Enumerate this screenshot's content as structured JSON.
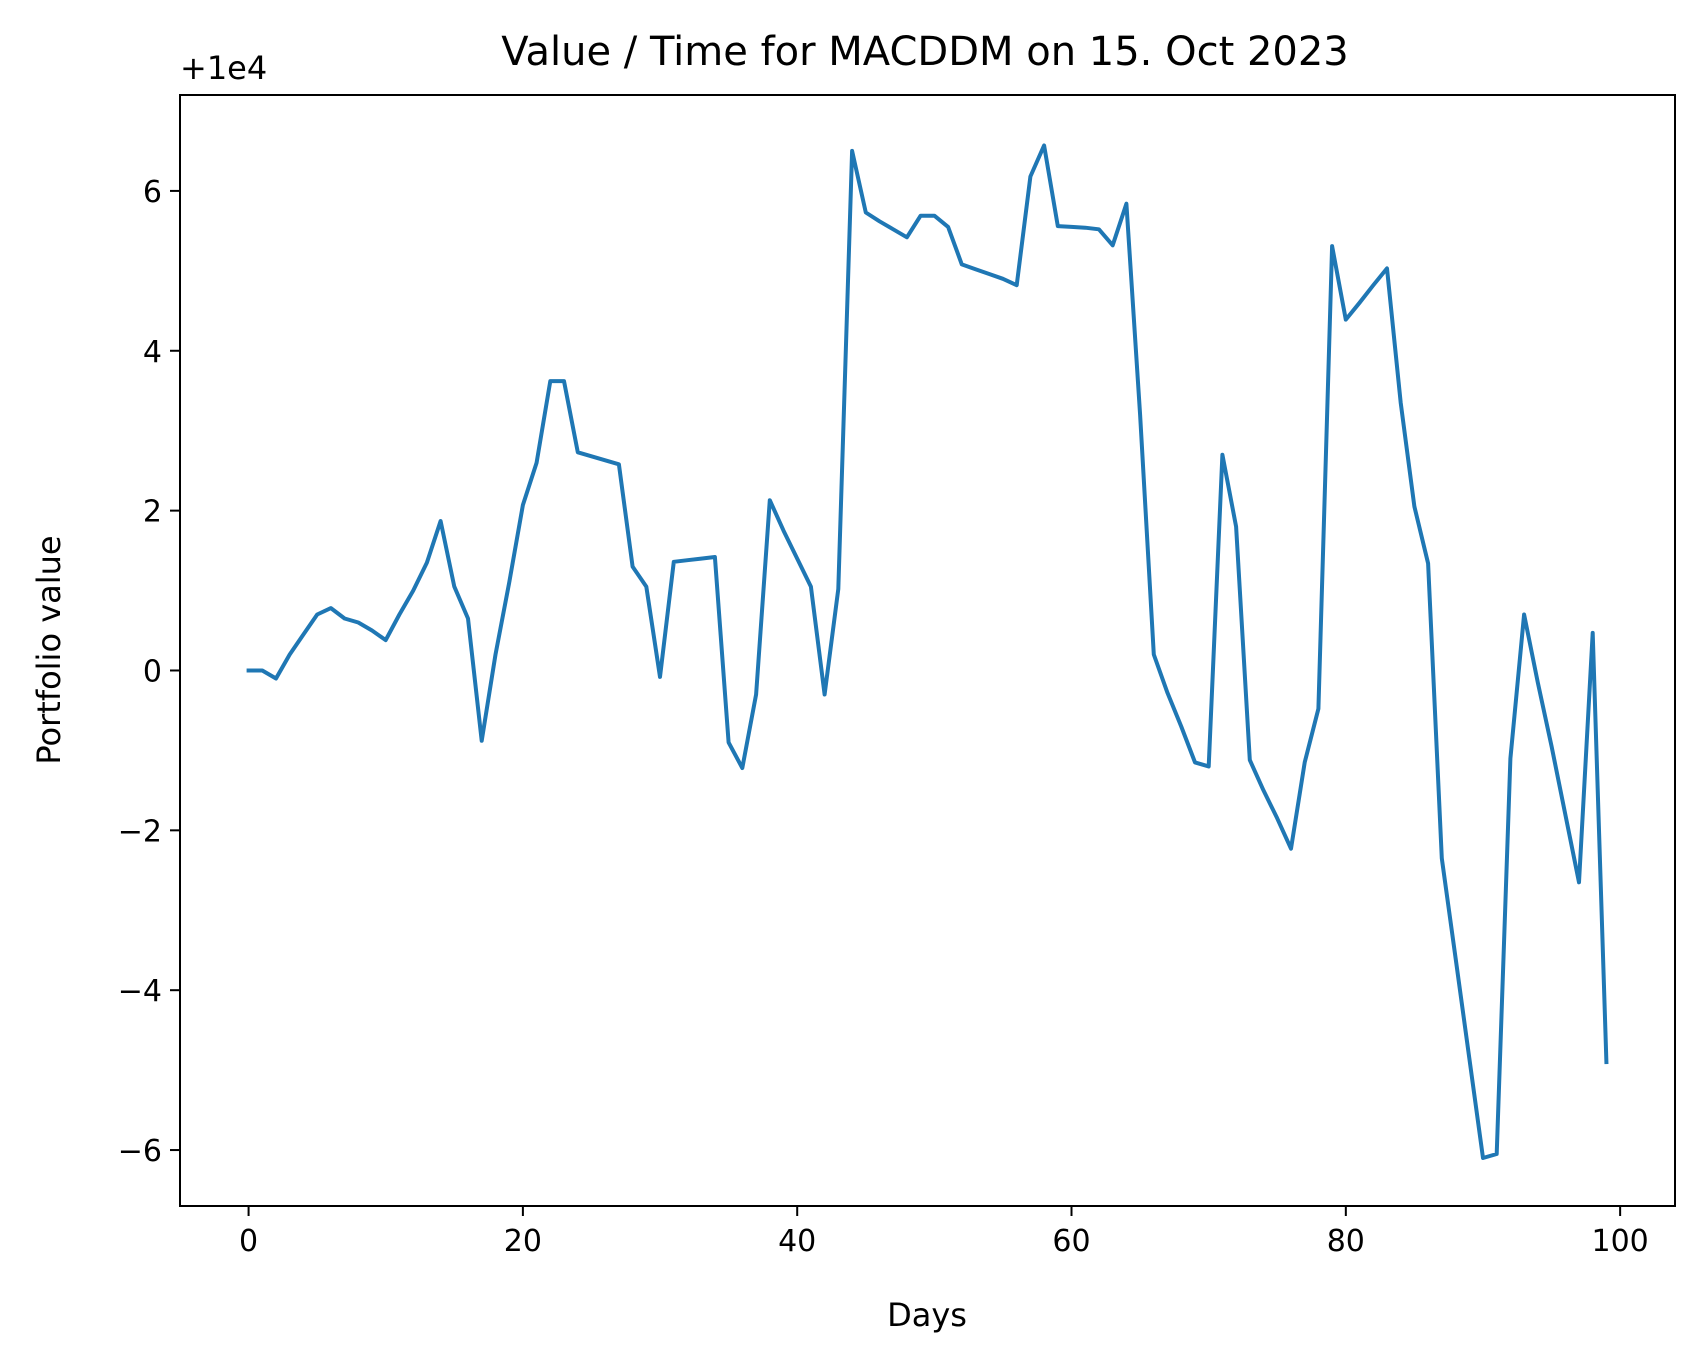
{
  "chart_data": {
    "type": "line",
    "title": "Value / Time for MACDDM on 15. Oct 2023",
    "xlabel": "Days",
    "ylabel": "Portfolio value",
    "y_offset_label": "+1e4",
    "y_offset": 10000,
    "xlim": [
      -5,
      104
    ],
    "ylim": [
      -6.7,
      7.2
    ],
    "x_ticks": [
      0,
      20,
      40,
      60,
      80,
      100
    ],
    "x_tick_labels": [
      "0",
      "20",
      "40",
      "60",
      "80",
      "100"
    ],
    "y_ticks": [
      -6,
      -4,
      -2,
      0,
      2,
      4,
      6
    ],
    "y_tick_labels": [
      "−6",
      "−4",
      "−2",
      "0",
      "2",
      "4",
      "6"
    ],
    "grid": false,
    "legend": "none",
    "series": [
      {
        "color": "#1f77b4",
        "x": [
          0,
          1,
          2,
          3,
          4,
          5,
          6,
          7,
          8,
          9,
          10,
          11,
          12,
          13,
          14,
          15,
          16,
          17,
          18,
          19,
          20,
          21,
          22,
          23,
          24,
          25,
          26,
          27,
          28,
          29,
          30,
          31,
          32,
          33,
          34,
          35,
          36,
          37,
          38,
          39,
          40,
          41,
          42,
          43,
          44,
          45,
          46,
          47,
          48,
          49,
          50,
          51,
          52,
          53,
          54,
          55,
          56,
          57,
          58,
          59,
          60,
          61,
          62,
          63,
          64,
          65,
          66,
          67,
          68,
          69,
          70,
          71,
          72,
          73,
          74,
          75,
          76,
          77,
          78,
          79,
          80,
          81,
          82,
          83,
          84,
          85,
          86,
          87,
          88,
          89,
          90,
          91,
          92,
          93,
          94,
          95,
          96,
          97,
          98,
          99
        ],
        "y": [
          0.0,
          0.0,
          -0.1,
          0.2,
          0.45,
          0.7,
          0.78,
          0.65,
          0.6,
          0.5,
          0.38,
          0.7,
          1.0,
          1.35,
          1.87,
          1.05,
          0.65,
          -0.88,
          0.2,
          1.1,
          2.07,
          2.6,
          3.62,
          3.62,
          2.73,
          2.68,
          2.63,
          2.58,
          1.3,
          1.05,
          -0.08,
          1.36,
          1.38,
          1.4,
          1.42,
          -0.9,
          -1.22,
          -0.3,
          2.13,
          1.75,
          1.4,
          1.05,
          -0.3,
          1.02,
          6.5,
          5.73,
          5.62,
          5.52,
          5.42,
          5.69,
          5.69,
          5.55,
          5.08,
          5.02,
          4.96,
          4.9,
          4.82,
          6.18,
          6.57,
          5.56,
          5.55,
          5.54,
          5.52,
          5.32,
          5.84,
          3.2,
          0.2,
          -0.28,
          -0.7,
          -1.15,
          -1.2,
          2.7,
          1.8,
          -1.12,
          -1.5,
          -1.85,
          -2.23,
          -1.15,
          -0.48,
          5.31,
          4.39,
          4.6,
          4.82,
          5.03,
          3.35,
          2.05,
          1.34,
          -2.35,
          -3.6,
          -4.85,
          -6.1,
          -6.05,
          -1.1,
          0.7,
          -0.15,
          -0.95,
          -1.8,
          -2.65,
          0.47,
          -4.9
        ]
      }
    ]
  }
}
